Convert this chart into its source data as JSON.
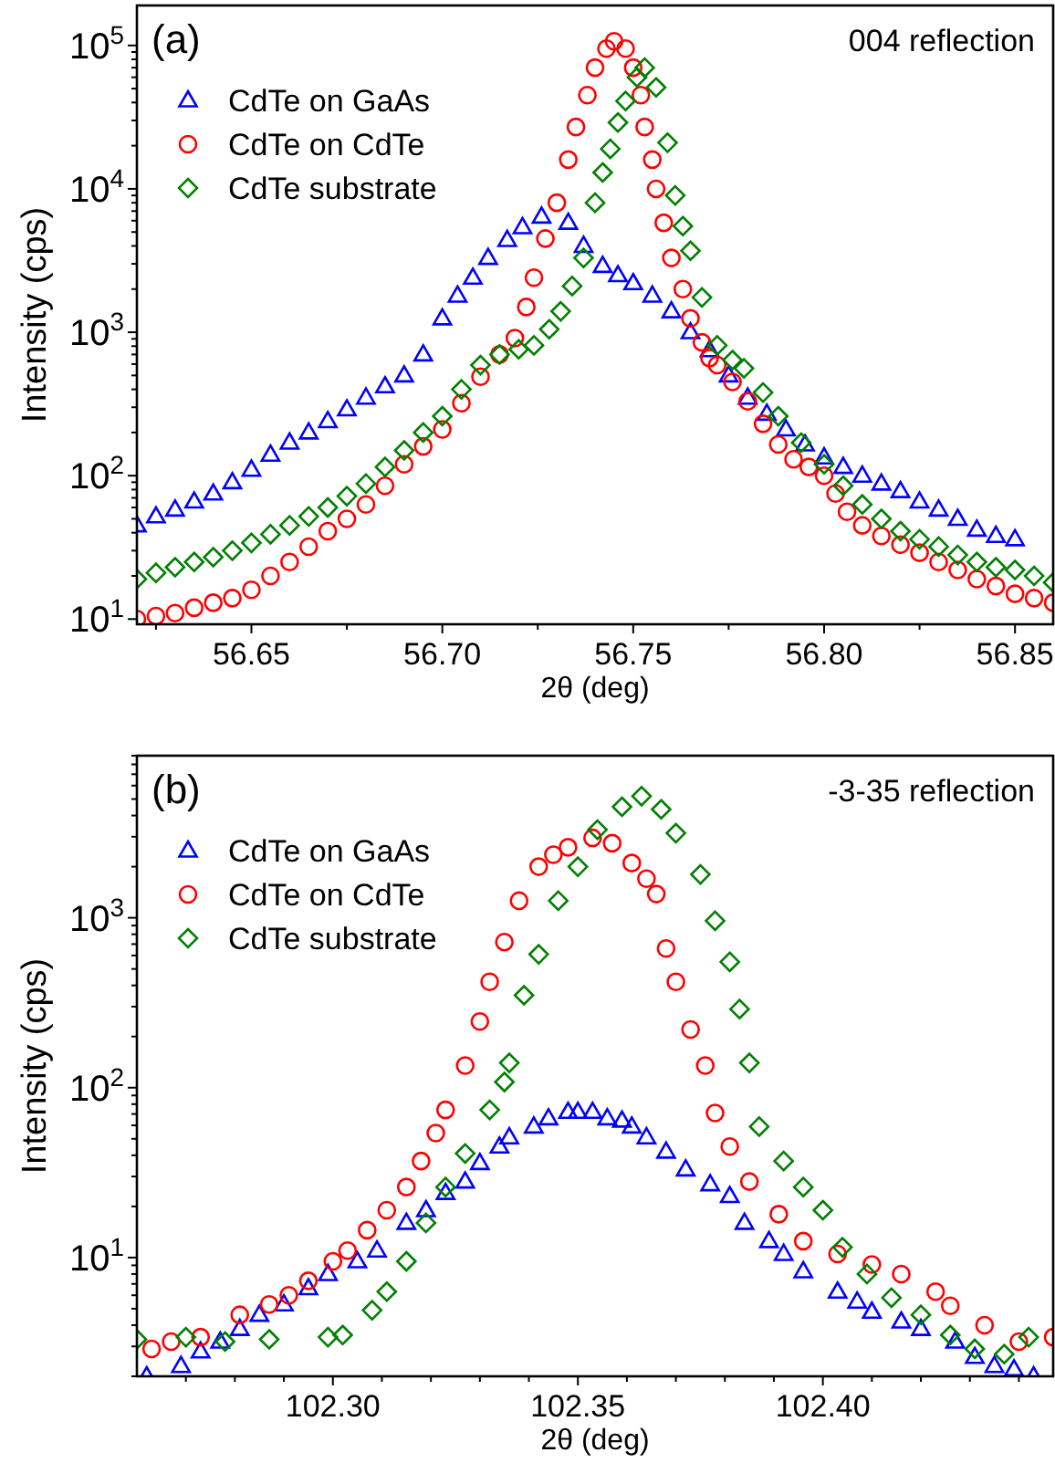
{
  "chart_data": [
    {
      "type": "scatter",
      "xlabel": "2θ (deg)",
      "ylabel": "Intensity (cps)",
      "annotations": [
        "(a)",
        "004 reflection"
      ],
      "log": "y",
      "legend": "top left",
      "xlim": [
        56.62,
        56.86
      ],
      "xticks": [
        {
          "value": 56.625,
          "label": null
        },
        {
          "value": 56.65,
          "label": "56.65"
        },
        {
          "value": 56.675,
          "label": null
        },
        {
          "value": 56.7,
          "label": "56.70"
        },
        {
          "value": 56.725,
          "label": null
        },
        {
          "value": 56.75,
          "label": "56.75"
        },
        {
          "value": 56.775,
          "label": null
        },
        {
          "value": 56.8,
          "label": "56.80"
        },
        {
          "value": 56.825,
          "label": null
        },
        {
          "value": 56.85,
          "label": "56.85"
        }
      ],
      "ylim": [
        9.2,
        190000
      ],
      "yticks": [
        {
          "value": 10,
          "label": "10$^{1}$"
        },
        {
          "value": 20,
          "label": null
        },
        {
          "value": 30,
          "label": null
        },
        {
          "value": 40,
          "label": null
        },
        {
          "value": 50,
          "label": null
        },
        {
          "value": 60,
          "label": null
        },
        {
          "value": 70,
          "label": null
        },
        {
          "value": 80,
          "label": null
        },
        {
          "value": 90,
          "label": null
        },
        {
          "value": 100,
          "label": "10$^{2}$"
        },
        {
          "value": 200,
          "label": null
        },
        {
          "value": 300,
          "label": null
        },
        {
          "value": 400,
          "label": null
        },
        {
          "value": 500,
          "label": null
        },
        {
          "value": 600,
          "label": null
        },
        {
          "value": 700,
          "label": null
        },
        {
          "value": 800,
          "label": null
        },
        {
          "value": 900,
          "label": null
        },
        {
          "value": 1000,
          "label": "10$^{3}$"
        },
        {
          "value": 2000,
          "label": null
        },
        {
          "value": 3000,
          "label": null
        },
        {
          "value": 4000,
          "label": null
        },
        {
          "value": 5000,
          "label": null
        },
        {
          "value": 6000,
          "label": null
        },
        {
          "value": 7000,
          "label": null
        },
        {
          "value": 8000,
          "label": null
        },
        {
          "value": 9000,
          "label": null
        },
        {
          "value": 10000,
          "label": "10$^{4}$"
        },
        {
          "value": 20000,
          "label": null
        },
        {
          "value": 30000,
          "label": null
        },
        {
          "value": 40000,
          "label": null
        },
        {
          "value": 50000,
          "label": null
        },
        {
          "value": 60000,
          "label": null
        },
        {
          "value": 70000,
          "label": null
        },
        {
          "value": 80000,
          "label": null
        },
        {
          "value": 90000,
          "label": null
        },
        {
          "value": 100000,
          "label": "10$^{5}$"
        }
      ],
      "series": [
        {
          "name": "CdTe on GaAs",
          "color": "#0000ff",
          "marker": "triangle",
          "x": [
            56.62,
            56.625,
            56.63,
            56.635,
            56.64,
            56.645,
            56.65,
            56.655,
            56.66,
            56.665,
            56.67,
            56.675,
            56.68,
            56.685,
            56.69,
            56.695,
            56.7,
            56.704,
            56.708,
            56.712,
            56.717,
            56.721,
            56.726,
            56.733,
            56.737,
            56.742,
            56.746,
            56.75,
            56.755,
            56.76,
            56.765,
            56.77,
            56.775,
            56.78,
            56.785,
            56.79,
            56.795,
            56.8,
            56.805,
            56.81,
            56.815,
            56.82,
            56.825,
            56.83,
            56.835,
            56.84,
            56.845,
            56.85
          ],
          "values": [
            45,
            52,
            58,
            66,
            75,
            90,
            110,
            140,
            170,
            200,
            240,
            290,
            350,
            420,
            500,
            700,
            1250,
            1800,
            2400,
            3300,
            4400,
            5400,
            6400,
            5800,
            4000,
            2900,
            2500,
            2200,
            1800,
            1400,
            1000,
            750,
            500,
            350,
            270,
            210,
            165,
            134,
            115,
            100,
            88,
            78,
            66,
            58,
            50,
            42,
            38,
            36
          ]
        },
        {
          "name": "CdTe on CdTe",
          "color": "#ff0000",
          "marker": "circle",
          "x": [
            56.62,
            56.625,
            56.63,
            56.635,
            56.64,
            56.645,
            56.65,
            56.655,
            56.66,
            56.665,
            56.67,
            56.675,
            56.68,
            56.685,
            56.69,
            56.695,
            56.7,
            56.705,
            56.71,
            56.715,
            56.719,
            56.722,
            56.724,
            56.727,
            56.73,
            56.733,
            56.735,
            56.738,
            56.74,
            56.743,
            56.745,
            56.748,
            56.75,
            56.752,
            56.753,
            56.755,
            56.756,
            56.758,
            56.76,
            56.763,
            56.765,
            56.768,
            56.77,
            56.772,
            56.776,
            56.78,
            56.784,
            56.788,
            56.792,
            56.796,
            56.8,
            56.803,
            56.806,
            56.81,
            56.815,
            56.82,
            56.825,
            56.83,
            56.835,
            56.84,
            56.845,
            56.85,
            56.855,
            56.86
          ],
          "values": [
            10,
            10.5,
            11,
            12,
            13,
            14,
            16,
            20,
            25,
            32,
            41,
            50,
            63,
            85,
            120,
            160,
            210,
            320,
            490,
            700,
            910,
            1500,
            2400,
            4500,
            8000,
            16000,
            27000,
            45000,
            70000,
            95000,
            107000,
            95000,
            70000,
            45000,
            27000,
            16000,
            10000,
            5800,
            3300,
            2000,
            1250,
            850,
            660,
            590,
            450,
            330,
            230,
            165,
            130,
            115,
            100,
            75,
            56,
            45,
            38,
            33,
            29,
            25,
            22,
            19,
            17,
            15,
            14,
            13
          ]
        },
        {
          "name": "CdTe substrate",
          "color": "#008000",
          "marker": "diamond",
          "x": [
            56.62,
            56.625,
            56.63,
            56.635,
            56.64,
            56.645,
            56.65,
            56.655,
            56.66,
            56.665,
            56.67,
            56.675,
            56.68,
            56.685,
            56.69,
            56.695,
            56.7,
            56.705,
            56.71,
            56.715,
            56.72,
            56.724,
            56.728,
            56.731,
            56.734,
            56.737,
            56.74,
            56.742,
            56.744,
            56.746,
            56.748,
            56.751,
            56.753,
            56.756,
            56.759,
            56.761,
            56.763,
            56.765,
            56.768,
            56.772,
            56.776,
            56.779,
            56.784,
            56.788,
            56.794,
            56.8,
            56.805,
            56.81,
            56.815,
            56.82,
            56.825,
            56.83,
            56.835,
            56.84,
            56.845,
            56.85,
            56.855,
            56.86
          ],
          "values": [
            19,
            21,
            23,
            25,
            27,
            30,
            34,
            39,
            45,
            52,
            60,
            72,
            88,
            115,
            150,
            200,
            260,
            400,
            590,
            700,
            760,
            810,
            1050,
            1400,
            2100,
            3300,
            8000,
            13000,
            19000,
            29000,
            41000,
            60000,
            70000,
            51000,
            21000,
            9000,
            5500,
            3700,
            1750,
            810,
            640,
            560,
            380,
            260,
            170,
            120,
            85,
            63,
            50,
            41,
            36,
            32,
            28,
            25,
            23,
            22,
            20,
            18
          ]
        }
      ]
    },
    {
      "type": "scatter",
      "xlabel": "2θ (deg)",
      "ylabel": "Intensity (cps)",
      "annotations": [
        "(b)",
        "-3-35 reflection"
      ],
      "log": "y",
      "legend": "top left",
      "xlim": [
        102.26,
        102.447
      ],
      "xticks": [
        {
          "value": 102.27,
          "label": null
        },
        {
          "value": 102.28,
          "label": null
        },
        {
          "value": 102.29,
          "label": null
        },
        {
          "value": 102.3,
          "label": "102.30"
        },
        {
          "value": 102.31,
          "label": null
        },
        {
          "value": 102.32,
          "label": null
        },
        {
          "value": 102.33,
          "label": null
        },
        {
          "value": 102.34,
          "label": null
        },
        {
          "value": 102.35,
          "label": "102.35"
        },
        {
          "value": 102.36,
          "label": null
        },
        {
          "value": 102.37,
          "label": null
        },
        {
          "value": 102.38,
          "label": null
        },
        {
          "value": 102.39,
          "label": null
        },
        {
          "value": 102.4,
          "label": "102.40"
        },
        {
          "value": 102.41,
          "label": null
        },
        {
          "value": 102.42,
          "label": null
        },
        {
          "value": 102.43,
          "label": null
        },
        {
          "value": 102.44,
          "label": null
        }
      ],
      "ylim": [
        2,
        9000
      ],
      "yticks": [
        {
          "value": 2,
          "label": null
        },
        {
          "value": 3,
          "label": null
        },
        {
          "value": 4,
          "label": null
        },
        {
          "value": 5,
          "label": null
        },
        {
          "value": 6,
          "label": null
        },
        {
          "value": 7,
          "label": null
        },
        {
          "value": 8,
          "label": null
        },
        {
          "value": 9,
          "label": null
        },
        {
          "value": 10,
          "label": "10$^{1}$"
        },
        {
          "value": 20,
          "label": null
        },
        {
          "value": 30,
          "label": null
        },
        {
          "value": 40,
          "label": null
        },
        {
          "value": 50,
          "label": null
        },
        {
          "value": 60,
          "label": null
        },
        {
          "value": 70,
          "label": null
        },
        {
          "value": 80,
          "label": null
        },
        {
          "value": 90,
          "label": null
        },
        {
          "value": 100,
          "label": "10$^{2}$"
        },
        {
          "value": 200,
          "label": null
        },
        {
          "value": 300,
          "label": null
        },
        {
          "value": 400,
          "label": null
        },
        {
          "value": 500,
          "label": null
        },
        {
          "value": 600,
          "label": null
        },
        {
          "value": 700,
          "label": null
        },
        {
          "value": 800,
          "label": null
        },
        {
          "value": 900,
          "label": null
        },
        {
          "value": 1000,
          "label": "10$^{3}$"
        },
        {
          "value": 2000,
          "label": null
        },
        {
          "value": 3000,
          "label": null
        },
        {
          "value": 4000,
          "label": null
        },
        {
          "value": 5000,
          "label": null
        },
        {
          "value": 6000,
          "label": null
        },
        {
          "value": 7000,
          "label": null
        },
        {
          "value": 8000,
          "label": null
        },
        {
          "value": 9000,
          "label": null
        }
      ],
      "series": [
        {
          "name": "CdTe on GaAs",
          "color": "#0000ff",
          "marker": "triangle",
          "x": [
            102.262,
            102.269,
            102.273,
            102.277,
            102.281,
            102.285,
            102.29,
            102.295,
            102.299,
            102.305,
            102.309,
            102.315,
            102.319,
            102.323,
            102.327,
            102.33,
            102.334,
            102.336,
            102.341,
            102.344,
            102.348,
            102.35,
            102.353,
            102.356,
            102.359,
            102.361,
            102.364,
            102.368,
            102.372,
            102.377,
            102.381,
            102.384,
            102.389,
            102.392,
            102.396,
            102.403,
            102.407,
            102.41,
            102.416,
            102.42,
            102.427,
            102.431,
            102.435,
            102.439,
            102.443
          ],
          "values": [
            2.0,
            2.3,
            2.8,
            3.2,
            3.8,
            4.6,
            5.3,
            6.6,
            8,
            9.5,
            11,
            16,
            19,
            24,
            28,
            36,
            45,
            51,
            59,
            66,
            72,
            72,
            72,
            66,
            64,
            59,
            51,
            42,
            33,
            27,
            23,
            16,
            12.5,
            10.5,
            8.3,
            6.3,
            5.5,
            4.8,
            4.2,
            3.8,
            3.2,
            2.6,
            2.3,
            2.2,
            2.0
          ]
        },
        {
          "name": "CdTe on CdTe",
          "color": "#ff0000",
          "marker": "circle",
          "x": [
            102.263,
            102.267,
            102.273,
            102.281,
            102.287,
            102.291,
            102.295,
            102.3,
            102.303,
            102.307,
            102.311,
            102.315,
            102.318,
            102.321,
            102.323,
            102.327,
            102.33,
            102.332,
            102.335,
            102.338,
            102.342,
            102.345,
            102.348,
            102.353,
            102.357,
            102.361,
            102.364,
            102.366,
            102.368,
            102.37,
            102.373,
            102.376,
            102.378,
            102.381,
            102.385,
            102.391,
            102.396,
            102.403,
            102.41,
            102.416,
            102.423,
            102.426,
            102.433,
            102.44,
            102.447
          ],
          "values": [
            2.9,
            3.2,
            3.4,
            4.6,
            5.3,
            6.0,
            7.3,
            9.5,
            11,
            14.5,
            19,
            26,
            37,
            54,
            74,
            135,
            245,
            420,
            720,
            1260,
            2000,
            2350,
            2600,
            2950,
            2750,
            2100,
            1700,
            1380,
            660,
            420,
            220,
            135,
            71,
            45,
            28,
            18,
            12.5,
            10.5,
            9.1,
            8,
            6.3,
            5.2,
            4.0,
            3.2,
            3.4
          ]
        },
        {
          "name": "CdTe substrate",
          "color": "#008000",
          "marker": "diamond",
          "x": [
            102.26,
            102.27,
            102.278,
            102.287,
            102.299,
            102.302,
            102.308,
            102.311,
            102.315,
            102.319,
            102.323,
            102.327,
            102.332,
            102.335,
            102.336,
            102.339,
            102.342,
            102.346,
            102.35,
            102.354,
            102.359,
            102.363,
            102.367,
            102.37,
            102.375,
            102.378,
            102.381,
            102.383,
            102.385,
            102.387,
            102.392,
            102.396,
            102.4,
            102.404,
            102.409,
            102.414,
            102.42,
            102.426,
            102.431,
            102.437,
            102.442
          ],
          "values": [
            3.3,
            3.4,
            3.2,
            3.3,
            3.4,
            3.5,
            4.9,
            6.3,
            9.5,
            16,
            26,
            41,
            74,
            108,
            140,
            350,
            610,
            1260,
            2000,
            3300,
            4500,
            5200,
            4350,
            3150,
            1800,
            960,
            550,
            290,
            140,
            59,
            37,
            26,
            19,
            11.5,
            8,
            5.8,
            4.6,
            3.5,
            2.9,
            2.7,
            3.4
          ]
        }
      ]
    }
  ]
}
